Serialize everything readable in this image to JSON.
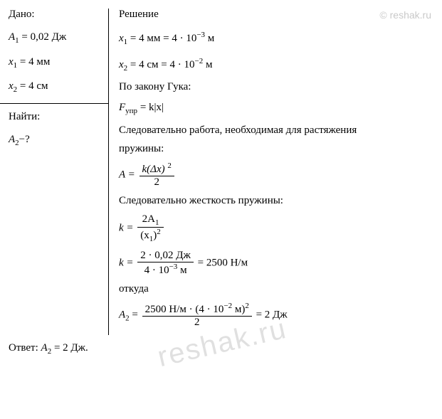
{
  "watermark_top": "© reshak.ru",
  "watermark_mid": "reshak.ru",
  "given": {
    "title": "Дано:",
    "A1_label": "A",
    "A1_sub": "1",
    "A1_eq": " = 0,02 Дж",
    "x1_label": "x",
    "x1_sub": "1",
    "x1_eq": " = 4 мм",
    "x2_label": "x",
    "x2_sub": "2",
    "x2_eq": " = 4 см"
  },
  "find": {
    "title": "Найти:",
    "A2_label": "A",
    "A2_sub": "2",
    "A2_eq": "−?"
  },
  "solution": {
    "title": "Решение",
    "conv1_left": "x",
    "conv1_sub": "1",
    "conv1_mid": " = 4 мм = 4 · 10",
    "conv1_sup": "−3",
    "conv1_unit": " м",
    "conv2_left": "x",
    "conv2_sub": "2",
    "conv2_mid": " = 4 см = 4 · 10",
    "conv2_sup": "−2",
    "conv2_unit": " м",
    "hooke_text": "По закону Гука:",
    "F_label": "F",
    "F_sub": "упр",
    "F_eq": " = k|x|",
    "work_text1": "Следовательно работа, необходимая для растяжения",
    "work_text2": "пружины:",
    "A_eq": "A = ",
    "A_num": "k(Δx) ",
    "A_num_sup": "2",
    "A_den": "2",
    "stiff_text": "Следовательно жесткость пружины:",
    "k_eq": "k = ",
    "k_num_a": "2A",
    "k_num_sub": "1",
    "k_den_a": "(x",
    "k_den_sub": "1",
    "k_den_b": ")",
    "k_den_sup": "2",
    "k2_eq": "k = ",
    "k2_num": "2 · 0,02 Дж",
    "k2_den_a": "4 · 10",
    "k2_den_sup": "−3",
    "k2_den_b": " м",
    "k2_result": " = 2500 Н/м",
    "whence": "откуда",
    "A2_eq": "A",
    "A2_eq_sub": "2",
    "A2_eq_mid": " = ",
    "A2_num_a": "2500 Н/м · (4 · 10",
    "A2_num_sup": "−2",
    "A2_num_b": " м)",
    "A2_num_sup2": "2",
    "A2_den": "2",
    "A2_result": " = 2 Дж"
  },
  "answer": {
    "label": "Ответ: ",
    "A_label": "A",
    "A_sub": "2",
    "A_eq": " = 2 Дж."
  },
  "colors": {
    "bg": "#ffffff",
    "text": "#000000",
    "watermark": "rgba(0,0,0,0.22)"
  }
}
